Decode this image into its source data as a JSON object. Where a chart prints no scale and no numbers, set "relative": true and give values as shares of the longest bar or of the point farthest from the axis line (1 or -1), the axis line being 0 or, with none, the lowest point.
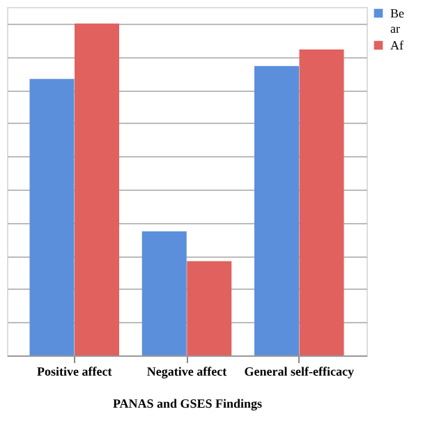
{
  "chart_data": {
    "type": "bar",
    "xlabel": "PANAS and GSES Findings",
    "relative": true,
    "grid": "y",
    "legend": "right",
    "categories": [
      "Positive affect",
      "Negative affect",
      "General self-efficacy"
    ],
    "series": [
      {
        "name": "Be\nar",
        "color": "#5b8fdc",
        "values": [
          0.833,
          0.374,
          0.872
        ]
      },
      {
        "name": "Af",
        "color": "#e0615e",
        "values": [
          1,
          0.284,
          0.922
        ]
      }
    ]
  }
}
